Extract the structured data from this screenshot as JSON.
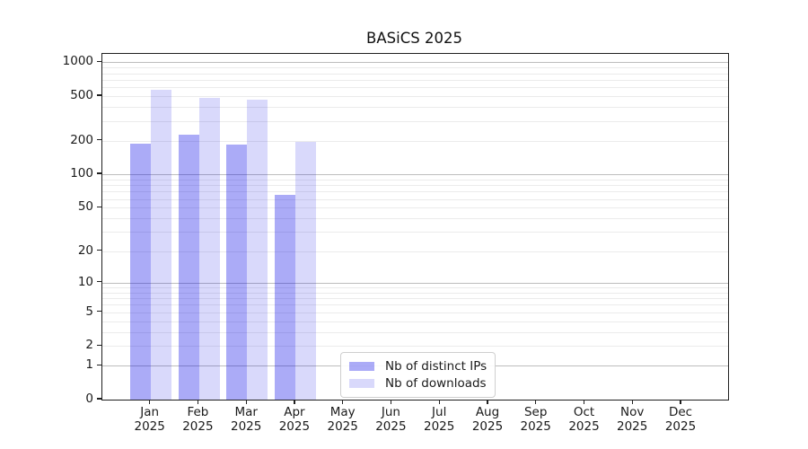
{
  "chart_data": {
    "type": "bar",
    "title": "BASiCS 2025",
    "y_scale": "log1p",
    "ylim": [
      0,
      1190
    ],
    "grid": true,
    "yticks": [
      0,
      1,
      2,
      5,
      10,
      20,
      50,
      100,
      200,
      500,
      1000
    ],
    "y_major_gridlines": [
      1,
      10,
      100,
      1000
    ],
    "y_minor_gridlines": [
      2,
      3,
      4,
      5,
      6,
      7,
      8,
      9,
      20,
      30,
      40,
      50,
      60,
      70,
      80,
      90,
      200,
      300,
      400,
      500,
      600,
      700,
      800,
      900
    ],
    "categories": [
      {
        "month": "Jan",
        "year": "2025"
      },
      {
        "month": "Feb",
        "year": "2025"
      },
      {
        "month": "Mar",
        "year": "2025"
      },
      {
        "month": "Apr",
        "year": "2025"
      },
      {
        "month": "May",
        "year": "2025"
      },
      {
        "month": "Jun",
        "year": "2025"
      },
      {
        "month": "Jul",
        "year": "2025"
      },
      {
        "month": "Aug",
        "year": "2025"
      },
      {
        "month": "Sep",
        "year": "2025"
      },
      {
        "month": "Oct",
        "year": "2025"
      },
      {
        "month": "Nov",
        "year": "2025"
      },
      {
        "month": "Dec",
        "year": "2025"
      }
    ],
    "series": [
      {
        "name": "Nb of distinct IPs",
        "color": "rgba(0,0,230,0.33)",
        "values": [
          190,
          225,
          185,
          65,
          0,
          0,
          0,
          0,
          0,
          0,
          0,
          0
        ]
      },
      {
        "name": "Nb of downloads",
        "color": "rgba(0,0,230,0.15)",
        "values": [
          570,
          485,
          465,
          195,
          0,
          0,
          0,
          0,
          0,
          0,
          0,
          0
        ]
      }
    ],
    "legend_position": "inside-bottom-center"
  }
}
